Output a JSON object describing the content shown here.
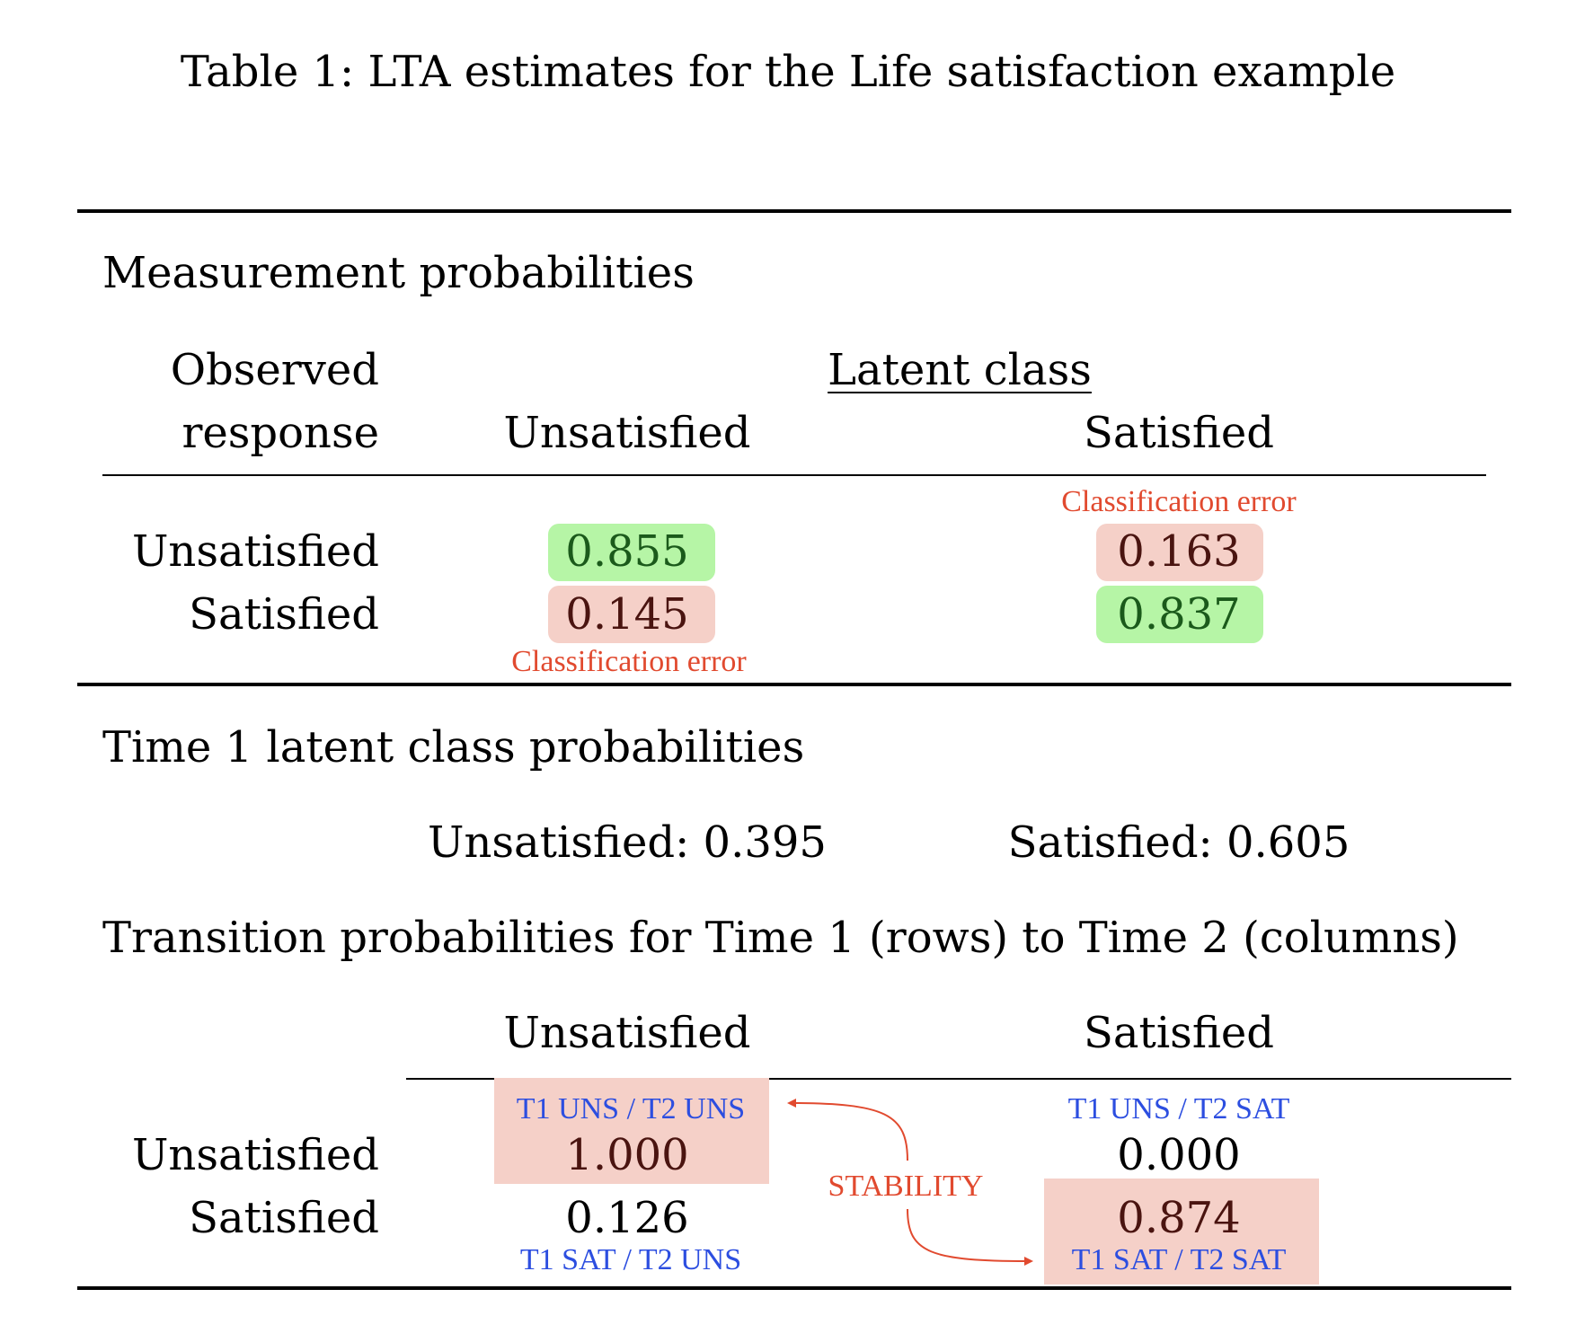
{
  "caption": "Table 1: LTA estimates for the Life satisfaction example",
  "measurement": {
    "section_title": "Measurement probabilities",
    "row_header_line1": "Observed",
    "row_header_line2": "response",
    "group_header": "Latent class",
    "col_unsatisfied": "Unsatisfied",
    "col_satisfied": "Satisfied",
    "row_unsatisfied": "Unsatisfied",
    "row_satisfied": "Satisfied",
    "values": {
      "uns_uns": "0.855",
      "uns_sat": "0.163",
      "sat_uns": "0.145",
      "sat_sat": "0.837"
    },
    "annotation_error_top": "Classification error",
    "annotation_error_bottom": "Classification error",
    "highlight_correct_color": "#b6f5a6",
    "highlight_error_color": "#f5d0c8"
  },
  "time1": {
    "section_title": "Time 1 latent class probabilities",
    "unsatisfied": "Unsatisfied: 0.395",
    "satisfied": "Satisfied: 0.605"
  },
  "transition": {
    "section_title": "Transition probabilities for Time 1 (rows) to Time 2 (columns)",
    "col_unsatisfied": "Unsatisfied",
    "col_satisfied": "Satisfied",
    "row_unsatisfied": "Unsatisfied",
    "row_satisfied": "Satisfied",
    "values": {
      "uns_uns": "1.000",
      "uns_sat": "0.000",
      "sat_uns": "0.126",
      "sat_sat": "0.874"
    },
    "labels": {
      "uns_uns": "T1 UNS / T2 UNS",
      "uns_sat": "T1 UNS / T2 SAT",
      "sat_uns": "T1 SAT / T2 UNS",
      "sat_sat": "T1 SAT / T2 SAT"
    },
    "stability_label": "STABILITY",
    "annotation_red": "#e14a2f",
    "annotation_blue": "#2c4ee0"
  }
}
